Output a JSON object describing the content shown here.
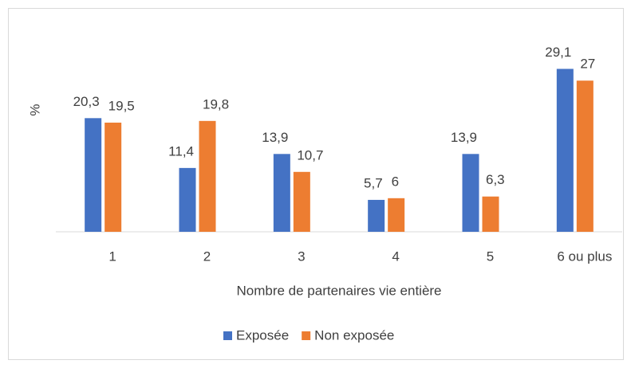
{
  "chart_data": {
    "type": "bar",
    "y_label": "%",
    "x_label": "Nombre de partenaires vie entière",
    "categories": [
      "1",
      "2",
      "3",
      "4",
      "5",
      "6 ou plus"
    ],
    "series": [
      {
        "name": "Exposée",
        "color": "#4472c4",
        "values": [
          20.3,
          11.4,
          13.9,
          5.7,
          13.9,
          29.1
        ],
        "value_labels": [
          "20,3",
          "11,4",
          "13,9",
          "5,7",
          "13,9",
          "29,1"
        ]
      },
      {
        "name": "Non exposée",
        "color": "#ed7d31",
        "values": [
          19.5,
          19.8,
          10.7,
          6,
          6.3,
          27
        ],
        "value_labels": [
          "19,5",
          "19,8",
          "10,7",
          "6",
          "6,3",
          "27"
        ]
      }
    ],
    "ylim": [
      0,
      35
    ],
    "legend": "bottom"
  }
}
